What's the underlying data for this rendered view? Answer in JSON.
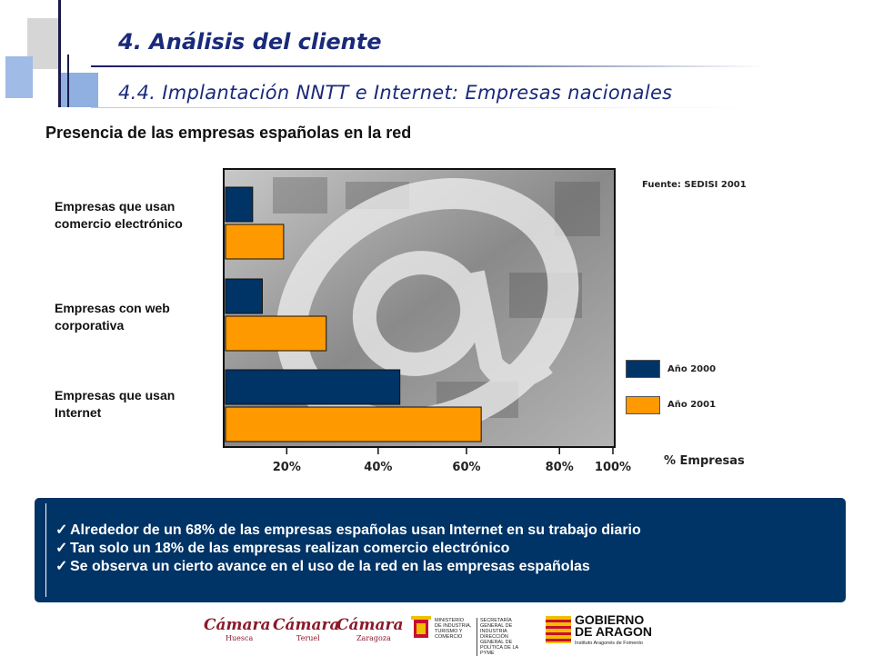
{
  "header": {
    "title": "4. Análisis del cliente",
    "subtitle": "4.4. Implantación NNTT e Internet: Empresas nacionales"
  },
  "section_heading": "Presencia de las empresas españolas en la red",
  "chart_data": {
    "type": "bar",
    "orientation": "horizontal",
    "title": "",
    "xlabel": "% Empresas",
    "source": "Fuente: SEDISI 2001",
    "categories": [
      "Empresas que usan comercio electrónico",
      "Empresas con web corporativa",
      "Empresas que usan Internet"
    ],
    "category_label_lines": [
      [
        "Empresas que usan",
        "comercio electrónico"
      ],
      [
        "Empresas con web",
        "corporativa"
      ],
      [
        "Empresas que usan",
        "Internet"
      ]
    ],
    "series": [
      {
        "name": "Año 2000",
        "color": "#003366",
        "values": [
          14,
          19,
          90
        ]
      },
      {
        "name": "Año 2001",
        "color": "#ff9900",
        "values": [
          30,
          52,
          132
        ]
      }
    ],
    "xlim": [
      0,
      200
    ],
    "xticks": [
      31.6,
      78.8,
      124.4,
      172.4,
      200
    ],
    "xtick_labels": [
      "20%",
      "40%",
      "60%",
      "80%",
      "100%"
    ],
    "legend_position": "right",
    "grid": false
  },
  "summary": {
    "items": [
      "Alrededor de un 68% de las empresas españolas usan Internet en su trabajo diario",
      "Tan solo un 18% de las empresas realizan comercio electrónico",
      "Se observa un cierto avance en el uso de la red en las empresas españolas"
    ],
    "check_glyph": "✓"
  },
  "logos": {
    "camara_name": "Cámara",
    "camara_cities": [
      "Huesca",
      "Teruel",
      "Zaragoza"
    ],
    "ministerio_lines": [
      "MINISTERIO",
      "DE INDUSTRIA,",
      "TURISMO Y",
      "COMERCIO"
    ],
    "secretaria_lines": [
      "SECRETARÍA GENERAL DE",
      "INDUSTRIA",
      "DIRECCIÓN GENERAL DE",
      "POLÍTICA DE LA PYME"
    ],
    "gobierno_lines": [
      "GOBIERNO",
      "DE ARAGON"
    ],
    "gobierno_sub": "Instituto Aragonés de Fomento"
  }
}
